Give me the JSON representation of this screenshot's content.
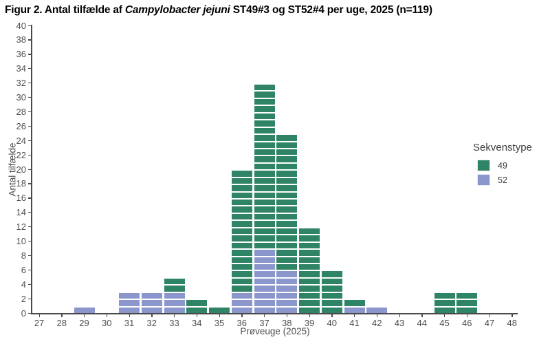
{
  "title": {
    "prefix": "Figur 2. Antal tilfælde af ",
    "italic": "Campylobacter jejuni",
    "suffix": " ST49#3 og ST52#4 per uge, 2025 (n=119)"
  },
  "chart_data": {
    "type": "bar",
    "subtype": "stacked-unit-chart",
    "title": "Figur 2. Antal tilfælde af Campylobacter jejuni ST49#3 og ST52#4 per uge, 2025 (n=119)",
    "n_total": 119,
    "xlabel": "Prøveuge (2025)",
    "ylabel": "Antal tilfælde",
    "ylim": [
      0,
      40
    ],
    "ytick_step": 2,
    "grid": false,
    "legend_title": "Sekvenstype",
    "legend_position": "right",
    "stack_bottom_to_top": [
      "52",
      "49"
    ],
    "categories": [
      27,
      28,
      29,
      30,
      31,
      32,
      33,
      34,
      35,
      36,
      37,
      38,
      39,
      40,
      41,
      42,
      43,
      44,
      45,
      46,
      47,
      48
    ],
    "series": [
      {
        "name": "49",
        "color": "#2e8464",
        "values": [
          0,
          0,
          0,
          0,
          0,
          0,
          2,
          2,
          1,
          17,
          23,
          19,
          12,
          6,
          1,
          0,
          0,
          0,
          3,
          3,
          0,
          0
        ]
      },
      {
        "name": "52",
        "color": "#8b96cc",
        "values": [
          0,
          0,
          1,
          0,
          3,
          3,
          3,
          0,
          0,
          3,
          9,
          6,
          0,
          0,
          1,
          1,
          0,
          0,
          0,
          0,
          0,
          0
        ]
      }
    ]
  },
  "legend": {
    "title": "Sekvenstype",
    "items": [
      {
        "label": "49",
        "color": "#2e8464"
      },
      {
        "label": "52",
        "color": "#8b96cc"
      }
    ]
  }
}
